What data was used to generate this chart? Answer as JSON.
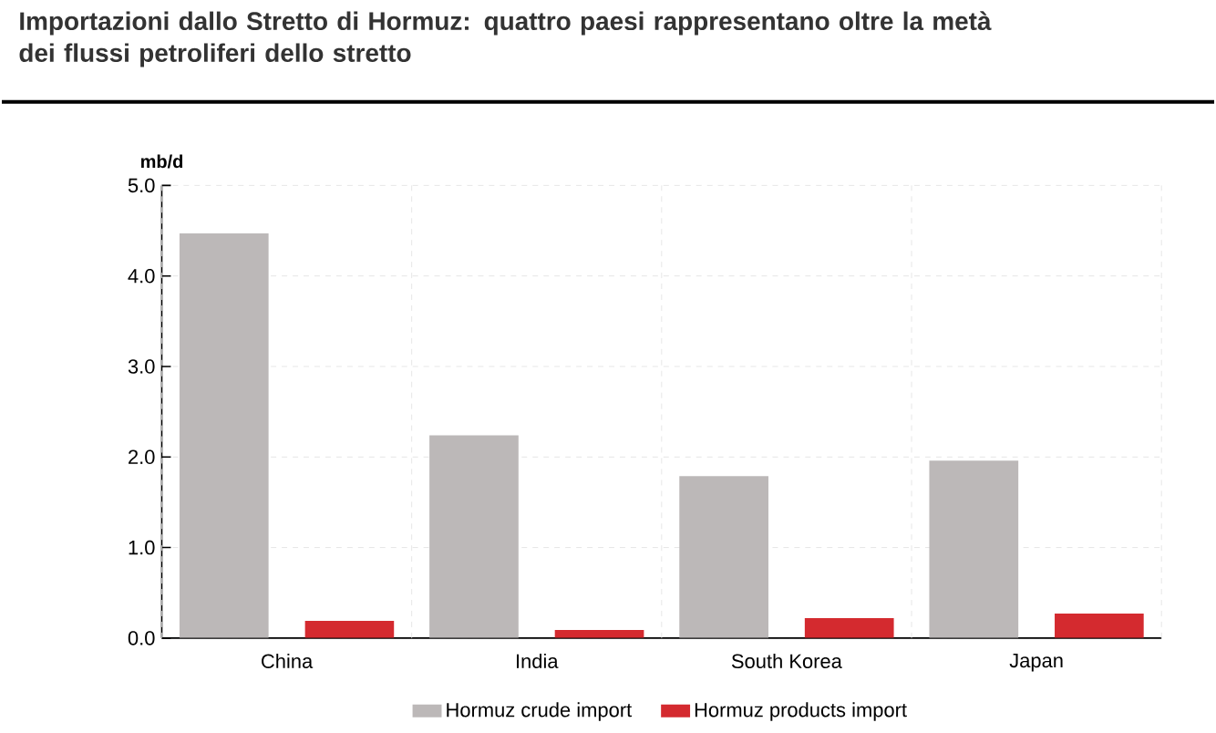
{
  "chart_data": {
    "type": "bar",
    "title": "Importazioni dallo Stretto di Hormuz: quattro paesi rappresentano oltre la metà dei flussi petroliferi dello stretto",
    "ylabel": "mb/d",
    "categories": [
      "China",
      "India",
      "South Korea",
      "Japan"
    ],
    "series": [
      {
        "name": "Hormuz crude import",
        "color": "#bcb8b8",
        "values": [
          4.47,
          2.24,
          1.79,
          1.96
        ]
      },
      {
        "name": "Hormuz products import",
        "color": "#d42a2f",
        "values": [
          0.19,
          0.09,
          0.22,
          0.27
        ]
      }
    ],
    "ylim": [
      0,
      5
    ],
    "yticks": [
      {
        "value": 0,
        "label": "0.0"
      },
      {
        "value": 1,
        "label": "1.0"
      },
      {
        "value": 2,
        "label": "2.0"
      },
      {
        "value": 3,
        "label": "3.0"
      },
      {
        "value": 4,
        "label": "4.0"
      },
      {
        "value": 5,
        "label": "5.0"
      }
    ],
    "grid": true,
    "legend": "bottom"
  }
}
